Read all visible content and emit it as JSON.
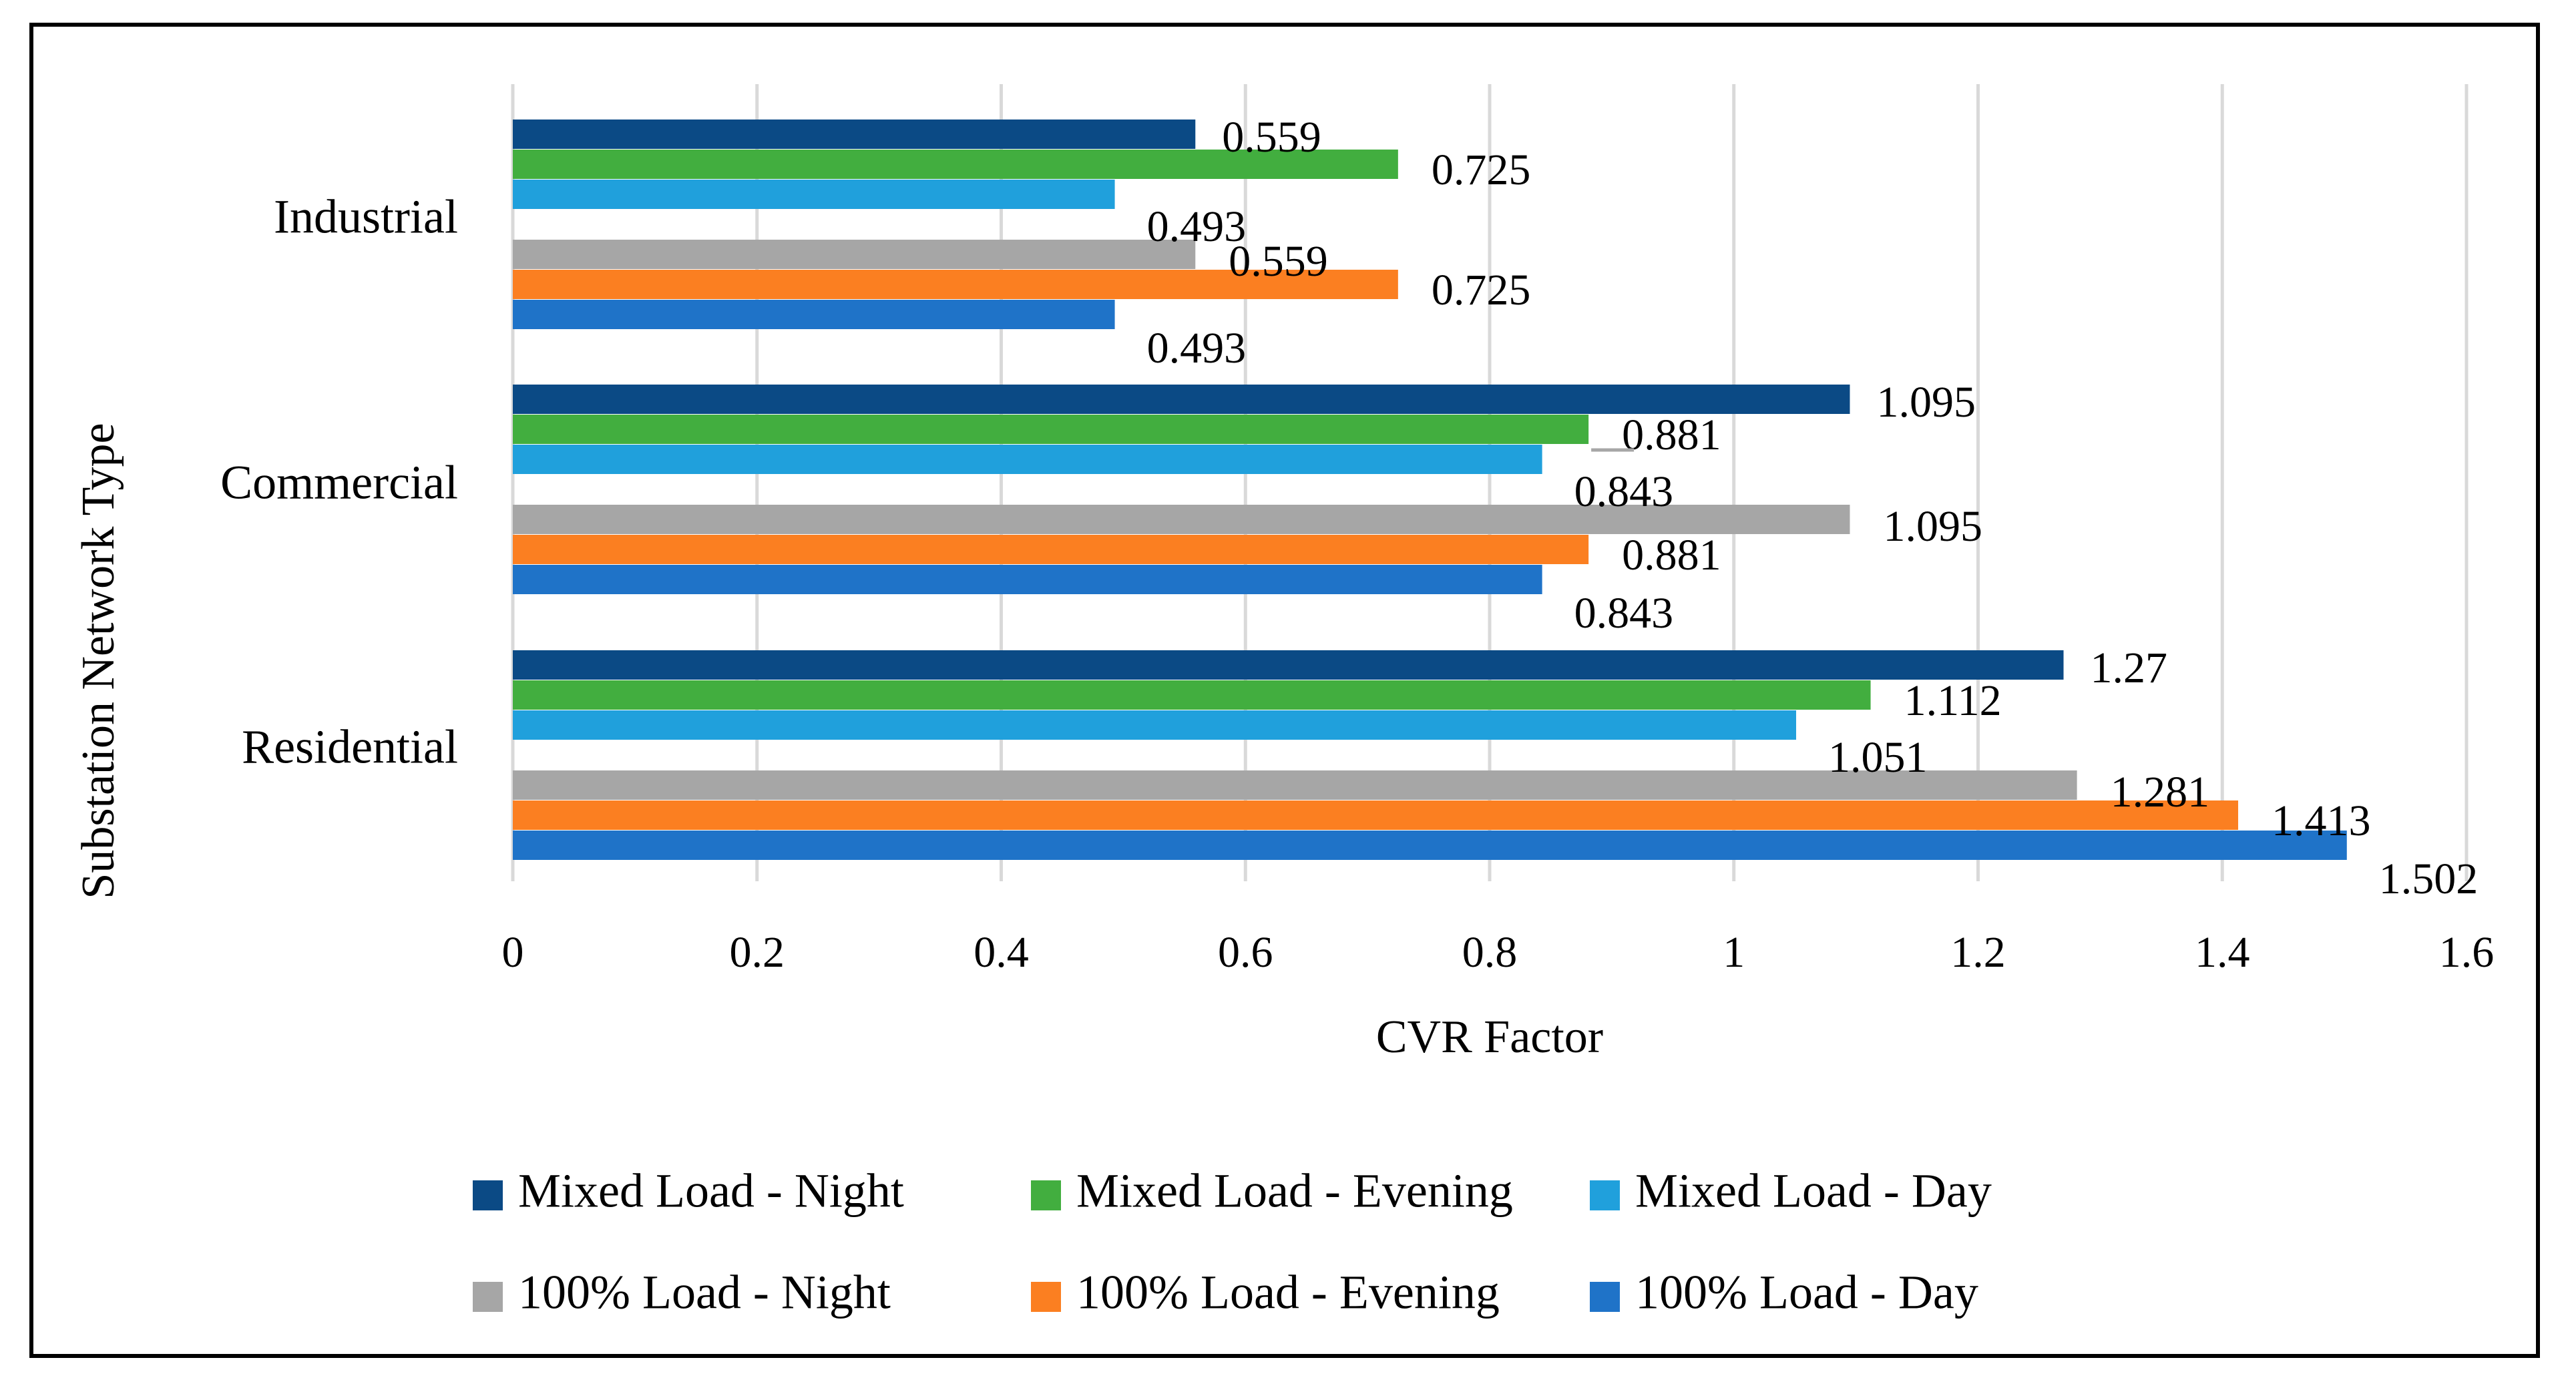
{
  "chart_data": {
    "type": "bar",
    "orientation": "horizontal",
    "categories": [
      "Industrial",
      "Commercial",
      "Residential"
    ],
    "series": [
      {
        "name": "Mixed Load - Night",
        "color": "#0B4A85",
        "values": [
          0.559,
          1.095,
          1.27
        ]
      },
      {
        "name": "Mixed Load - Evening",
        "color": "#42AE3F",
        "values": [
          0.725,
          0.881,
          1.112
        ]
      },
      {
        "name": "Mixed Load - Day",
        "color": "#20A0DC",
        "values": [
          0.493,
          0.843,
          1.051
        ]
      },
      {
        "name": "100% Load - Night",
        "color": "#A6A6A6",
        "values": [
          0.559,
          1.095,
          1.281
        ]
      },
      {
        "name": "100% Load - Evening",
        "color": "#FB7F21",
        "values": [
          0.725,
          0.881,
          1.413
        ]
      },
      {
        "name": "100% Load - Day",
        "color": "#1F73C8",
        "values": [
          0.493,
          0.843,
          1.502
        ]
      }
    ],
    "data_labels": [
      [
        "0.559",
        "1.095",
        "1.27"
      ],
      [
        "0.725",
        "0.881",
        "1.112"
      ],
      [
        "0.493",
        "0.843",
        "1.051"
      ],
      [
        "0.559",
        "1.095",
        "1.281"
      ],
      [
        "0.725",
        "0.881",
        "1.413"
      ],
      [
        "0.493",
        "0.843",
        "1.502"
      ]
    ],
    "x_ticks": [
      "0",
      "0.2",
      "0.4",
      "0.6",
      "0.8",
      "1",
      "1.2",
      "1.4",
      "1.6"
    ],
    "xlim": [
      0,
      1.6
    ],
    "xlabel": "CVR Factor",
    "ylabel": "Substation Network Type",
    "title": "",
    "grid": "vertical",
    "legend_position": "bottom"
  }
}
